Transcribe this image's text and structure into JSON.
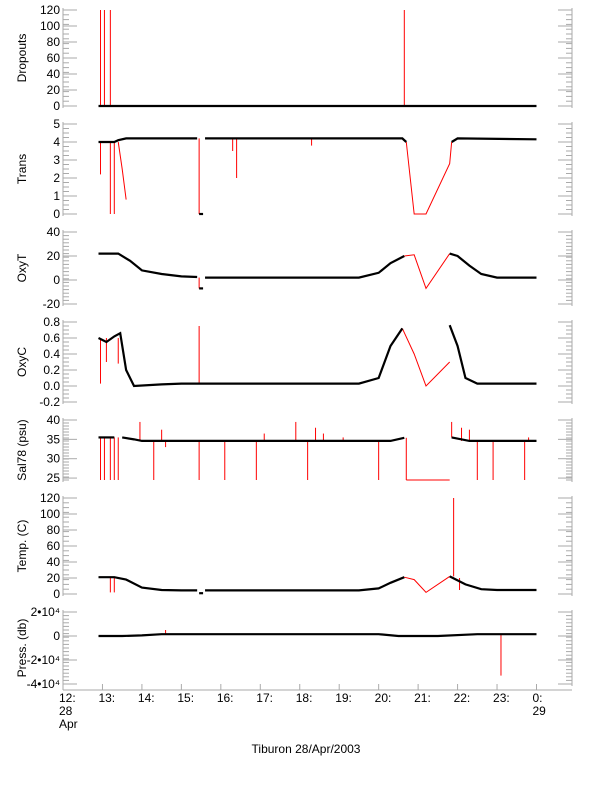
{
  "chart_data": {
    "type": "line",
    "title": "Tiburon 28/Apr/2003",
    "xlabel": "Tiburon 28/Apr/2003",
    "x_unit": "hour of day (12 = 12:00 28 Apr, 24 = 0:00 29 Apr)",
    "xlim": [
      12,
      24.9
    ],
    "x_ticks": [
      {
        "v": 12,
        "label": [
          "12:",
          "28",
          "Apr"
        ]
      },
      {
        "v": 13,
        "label": [
          "13:"
        ]
      },
      {
        "v": 14,
        "label": [
          "14:"
        ]
      },
      {
        "v": 15,
        "label": [
          "15:"
        ]
      },
      {
        "v": 16,
        "label": [
          "16:"
        ]
      },
      {
        "v": 17,
        "label": [
          "17:"
        ]
      },
      {
        "v": 18,
        "label": [
          "18:"
        ]
      },
      {
        "v": 19,
        "label": [
          "19:"
        ]
      },
      {
        "v": 20,
        "label": [
          "20:"
        ]
      },
      {
        "v": 21,
        "label": [
          "21:"
        ]
      },
      {
        "v": 22,
        "label": [
          "22:"
        ]
      },
      {
        "v": 23,
        "label": [
          "23:"
        ]
      },
      {
        "v": 24,
        "label": [
          "0:",
          "29"
        ]
      }
    ],
    "series_colors": {
      "good": "#000000",
      "flagged": "#ff0000"
    },
    "panels": [
      {
        "name": "dropouts",
        "ylabel": "Dropouts",
        "ylim": [
          0,
          120
        ],
        "ticks": [
          "0",
          "20",
          "40",
          "60",
          "80",
          "100",
          "120"
        ],
        "tick_values": [
          0,
          20,
          40,
          60,
          80,
          100,
          120
        ],
        "good": [
          [
            12.9,
            0
          ],
          [
            24,
            0
          ]
        ],
        "flagged_lines": [],
        "spikes": [
          [
            12.95,
            0,
            120
          ],
          [
            13.05,
            0,
            120
          ],
          [
            13.2,
            0,
            120
          ],
          [
            20.65,
            0,
            120
          ]
        ]
      },
      {
        "name": "trans",
        "ylabel": "Trans",
        "ylim": [
          0,
          5
        ],
        "ticks": [
          "0",
          "1",
          "2",
          "3",
          "4",
          "5"
        ],
        "tick_values": [
          0,
          1,
          2,
          3,
          4,
          5
        ],
        "good": [
          [
            12.9,
            4.0
          ],
          [
            13.3,
            4.0
          ],
          [
            13.4,
            4.1
          ],
          [
            13.6,
            4.2
          ],
          [
            15.4,
            4.2
          ],
          null,
          [
            15.45,
            0
          ],
          [
            15.55,
            0
          ],
          null,
          [
            15.6,
            4.2
          ],
          [
            20.6,
            4.2
          ],
          [
            20.7,
            4.0
          ],
          null,
          [
            21.85,
            4.0
          ],
          [
            22.0,
            4.2
          ],
          [
            24,
            4.15
          ]
        ],
        "flagged_lines": [
          [
            [
              20.7,
              4.0
            ],
            [
              20.9,
              0
            ],
            [
              21.2,
              0
            ],
            [
              21.8,
              2.8
            ],
            [
              21.85,
              4.0
            ]
          ],
          [
            [
              13.4,
              4.0
            ],
            [
              13.5,
              2.5
            ],
            [
              13.6,
              0.8
            ]
          ]
        ],
        "spikes": [
          [
            12.95,
            4,
            2.2
          ],
          [
            13.2,
            4,
            0
          ],
          [
            13.3,
            4,
            0
          ],
          [
            15.45,
            4.2,
            0
          ],
          [
            16.4,
            4.2,
            2.0
          ],
          [
            16.3,
            4.2,
            3.5
          ],
          [
            18.3,
            4.2,
            3.8
          ]
        ]
      },
      {
        "name": "oxyt",
        "ylabel": "OxyT",
        "ylim": [
          -20,
          40
        ],
        "ticks": [
          "-20",
          "0",
          "20",
          "40"
        ],
        "tick_values": [
          -20,
          0,
          20,
          40
        ],
        "good": [
          [
            12.9,
            22
          ],
          [
            13.4,
            22
          ],
          [
            13.7,
            16
          ],
          [
            14,
            8
          ],
          [
            14.5,
            5
          ],
          [
            15,
            3
          ],
          [
            15.4,
            2.5
          ],
          null,
          [
            15.45,
            -7
          ],
          [
            15.55,
            -7
          ],
          null,
          [
            15.6,
            2
          ],
          [
            19.5,
            2
          ],
          [
            20,
            6
          ],
          [
            20.3,
            14
          ],
          [
            20.65,
            20
          ],
          null,
          [
            21.8,
            22
          ],
          [
            22,
            20
          ],
          [
            22.3,
            12
          ],
          [
            22.6,
            5
          ],
          [
            23,
            2
          ],
          [
            24,
            2
          ]
        ],
        "flagged_lines": [
          [
            [
              20.65,
              20
            ],
            [
              20.9,
              21
            ],
            [
              21.2,
              -7
            ],
            [
              21.8,
              22
            ]
          ]
        ],
        "spikes": [
          [
            15.45,
            2,
            -7
          ]
        ]
      },
      {
        "name": "oxyc",
        "ylabel": "OxyC",
        "ylim": [
          -0.2,
          0.8
        ],
        "ticks": [
          "-0.2",
          "0.0",
          "0.2",
          "0.4",
          "0.6",
          "0.8"
        ],
        "tick_values": [
          -0.2,
          0,
          0.2,
          0.4,
          0.6,
          0.8
        ],
        "good": [
          [
            12.9,
            0.6
          ],
          [
            13.1,
            0.55
          ],
          [
            13.3,
            0.62
          ],
          [
            13.45,
            0.66
          ],
          [
            13.6,
            0.2
          ],
          [
            13.8,
            0.0
          ],
          [
            14.5,
            0.02
          ],
          [
            15,
            0.03
          ],
          [
            19.5,
            0.03
          ],
          [
            20,
            0.1
          ],
          [
            20.3,
            0.5
          ],
          [
            20.6,
            0.72
          ],
          null,
          [
            21.8,
            0.76
          ],
          [
            22.0,
            0.5
          ],
          [
            22.2,
            0.1
          ],
          [
            22.5,
            0.03
          ],
          [
            24,
            0.03
          ]
        ],
        "flagged_lines": [
          [
            [
              20.6,
              0.72
            ],
            [
              20.9,
              0.4
            ],
            [
              21.2,
              0.0
            ],
            [
              21.8,
              0.3
            ]
          ]
        ],
        "spikes": [
          [
            12.95,
            0.6,
            0.03
          ],
          [
            13.1,
            0.6,
            0.3
          ],
          [
            13.4,
            0.6,
            0.28
          ],
          [
            15.45,
            0.03,
            0.75
          ]
        ]
      },
      {
        "name": "salinity",
        "ylabel": "Sal78 (psu)",
        "ylim": [
          24.5,
          40
        ],
        "ticks": [
          "25",
          "30",
          "35",
          "40"
        ],
        "tick_values": [
          25,
          30,
          35,
          40
        ],
        "good": [
          [
            12.9,
            35.5
          ],
          [
            13.3,
            35.5
          ],
          null,
          [
            13.5,
            35.5
          ],
          [
            13.8,
            35.0
          ],
          [
            14,
            34.6
          ],
          [
            20.3,
            34.6
          ],
          [
            20.65,
            35.4
          ],
          null,
          [
            21.85,
            35.5
          ],
          [
            22.3,
            34.6
          ],
          [
            24,
            34.6
          ]
        ],
        "flagged_lines": [
          [
            [
              20.7,
              24.5
            ],
            [
              21.8,
              24.5
            ]
          ]
        ],
        "spikes": [
          [
            12.95,
            35.5,
            24.5
          ],
          [
            13.05,
            35.5,
            24.5
          ],
          [
            13.2,
            35.5,
            24.5
          ],
          [
            13.3,
            35.5,
            24.5
          ],
          [
            13.4,
            35.5,
            24.5
          ],
          [
            13.95,
            34.6,
            39.5
          ],
          [
            14.3,
            34.6,
            24.5
          ],
          [
            14.5,
            34.6,
            37.5
          ],
          [
            14.6,
            34.6,
            33
          ],
          [
            15.45,
            34.6,
            24.5
          ],
          [
            16.1,
            34.6,
            24.5
          ],
          [
            16.9,
            34.6,
            24.5
          ],
          [
            17.1,
            34.6,
            36.5
          ],
          [
            17.9,
            34.6,
            39.5
          ],
          [
            18.2,
            34.6,
            24.5
          ],
          [
            18.4,
            34.6,
            38
          ],
          [
            18.6,
            34.6,
            36.5
          ],
          [
            19.1,
            34.6,
            35.5
          ],
          [
            20,
            34.6,
            24.5
          ],
          [
            20.7,
            35.4,
            24.5
          ],
          [
            21.85,
            35.5,
            39.5
          ],
          [
            22.1,
            34.6,
            38
          ],
          [
            22.3,
            34.6,
            37.5
          ],
          [
            22.5,
            34.6,
            24.5
          ],
          [
            22.9,
            34.6,
            24.5
          ],
          [
            23.7,
            34.6,
            24.5
          ],
          [
            23.8,
            34.6,
            35.5
          ]
        ]
      },
      {
        "name": "temperature",
        "ylabel": "Temp. (C)",
        "ylim": [
          0,
          120
        ],
        "ticks": [
          "0",
          "20",
          "40",
          "60",
          "80",
          "100",
          "120"
        ],
        "tick_values": [
          0,
          20,
          40,
          60,
          80,
          100,
          120
        ],
        "good": [
          [
            12.9,
            21
          ],
          [
            13.3,
            21
          ],
          [
            13.6,
            18
          ],
          [
            14,
            8
          ],
          [
            14.5,
            5
          ],
          [
            15,
            4.5
          ],
          [
            15.4,
            4.5
          ],
          null,
          [
            15.45,
            1
          ],
          [
            15.55,
            1
          ],
          null,
          [
            15.6,
            4.5
          ],
          [
            19.5,
            4.5
          ],
          [
            20,
            7
          ],
          [
            20.3,
            14
          ],
          [
            20.65,
            21
          ],
          null,
          [
            21.8,
            22
          ],
          [
            22.2,
            12
          ],
          [
            22.6,
            6
          ],
          [
            23,
            5
          ],
          [
            24,
            5
          ]
        ],
        "flagged_lines": [
          [
            [
              20.65,
              21
            ],
            [
              20.9,
              18
            ],
            [
              21.2,
              2
            ],
            [
              21.8,
              22
            ]
          ]
        ],
        "spikes": [
          [
            13.2,
            21,
            2
          ],
          [
            13.3,
            21,
            2
          ],
          [
            21.9,
            22,
            120
          ],
          [
            22.05,
            20,
            5
          ]
        ]
      },
      {
        "name": "pressure",
        "ylabel": "Press. (db)",
        "ylim": [
          -40000,
          20000
        ],
        "ticks": [
          "-4•10⁴",
          "-2•10⁴",
          "0",
          "2•10⁴"
        ],
        "tick_values": [
          -40000,
          -20000,
          0,
          20000
        ],
        "good": [
          [
            12.9,
            0
          ],
          [
            13.5,
            0
          ],
          [
            14,
            500
          ],
          [
            14.5,
            1500
          ],
          [
            20,
            1500
          ],
          [
            20.5,
            0
          ],
          [
            21.5,
            0
          ],
          [
            22.5,
            1500
          ],
          [
            24,
            1500
          ]
        ],
        "flagged_lines": [],
        "spikes": [
          [
            14.6,
            1500,
            5000
          ],
          [
            23.1,
            1500,
            -33000
          ]
        ]
      }
    ]
  }
}
